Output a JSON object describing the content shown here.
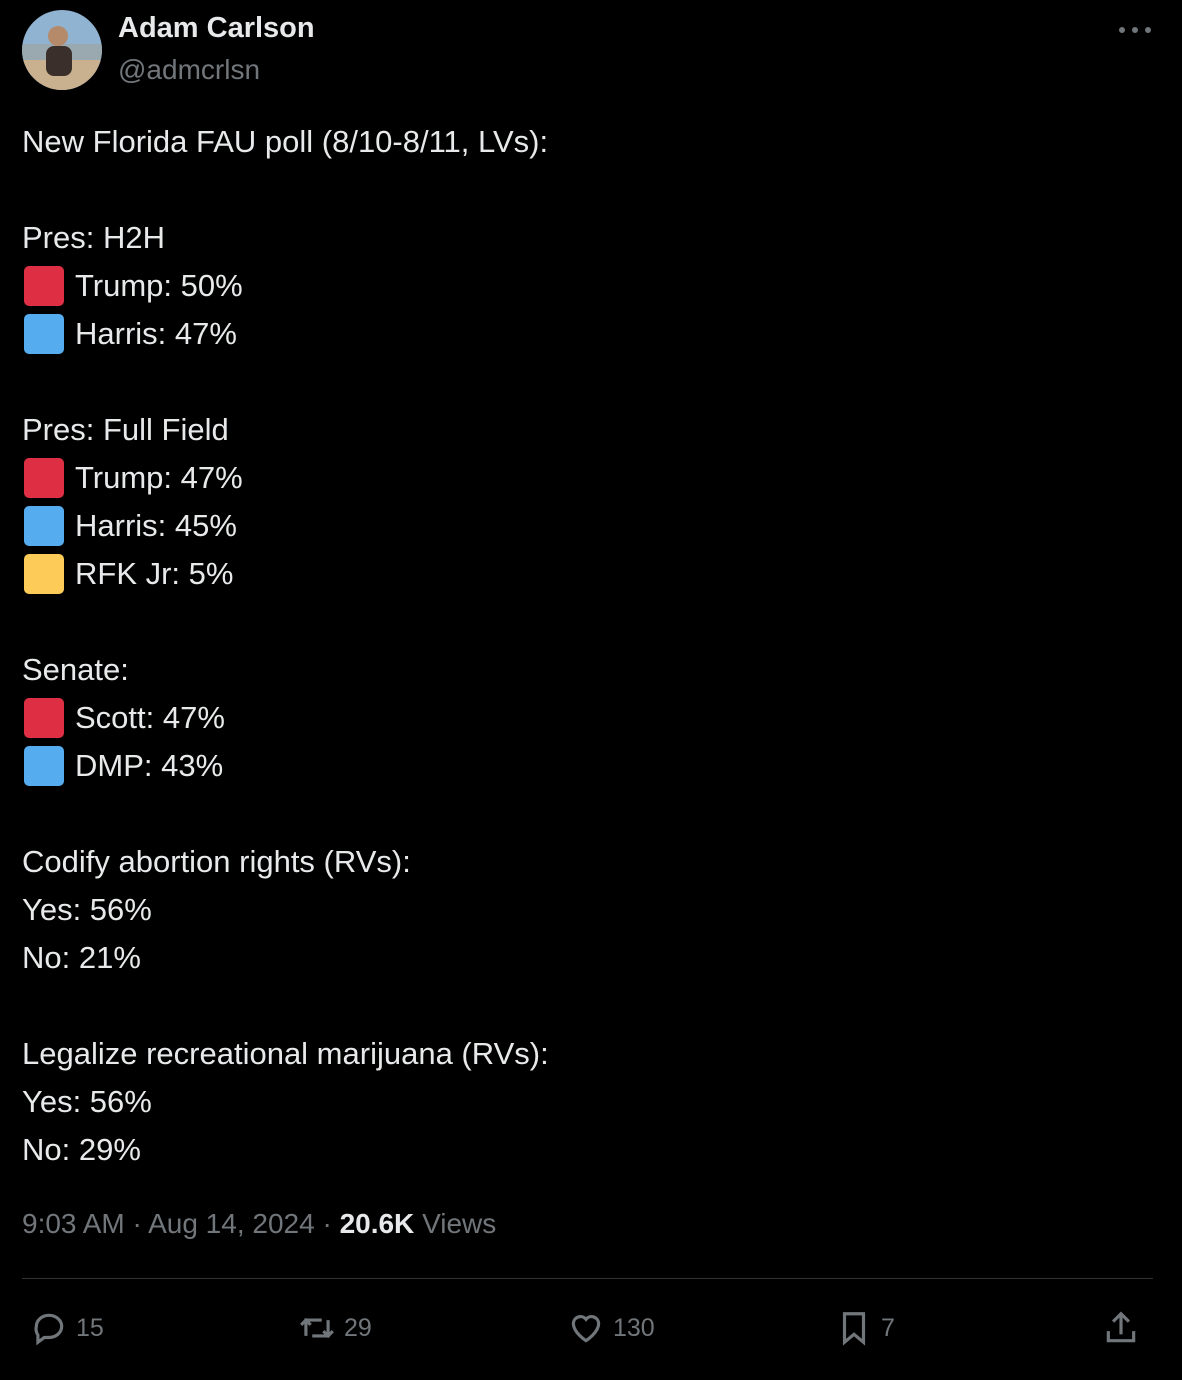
{
  "author": {
    "name": "Adam Carlson",
    "handle": "@admcrlsn"
  },
  "tweet": {
    "intro": "New Florida FAU poll (8/10-8/11, LVs):",
    "sections": [
      {
        "heading": "Pres: H2H",
        "items": [
          {
            "marker": "#dd2e44",
            "text": "Trump: 50%"
          },
          {
            "marker": "#55acee",
            "text": "Harris: 47%"
          }
        ]
      },
      {
        "heading": "Pres: Full Field",
        "items": [
          {
            "marker": "#dd2e44",
            "text": "Trump: 47%"
          },
          {
            "marker": "#55acee",
            "text": "Harris: 45%"
          },
          {
            "marker": "#fdcb58",
            "text": "RFK Jr: 5%"
          }
        ]
      },
      {
        "heading": "Senate:",
        "items": [
          {
            "marker": "#dd2e44",
            "text": "Scott: 47%"
          },
          {
            "marker": "#55acee",
            "text": "DMP: 43%"
          }
        ]
      },
      {
        "heading": "Codify abortion rights (RVs):",
        "items": [
          {
            "text": "Yes: 56%"
          },
          {
            "text": "No: 21%"
          }
        ]
      },
      {
        "heading": "Legalize recreational marijuana (RVs):",
        "items": [
          {
            "text": "Yes: 56%"
          },
          {
            "text": "No: 29%"
          }
        ]
      }
    ]
  },
  "meta": {
    "time": "9:03 AM",
    "separator": "·",
    "date": "Aug 14, 2024",
    "views": "20.6K",
    "views_label": "Views"
  },
  "actions": {
    "replies": "15",
    "retweets": "29",
    "likes": "130",
    "bookmarks": "7"
  }
}
